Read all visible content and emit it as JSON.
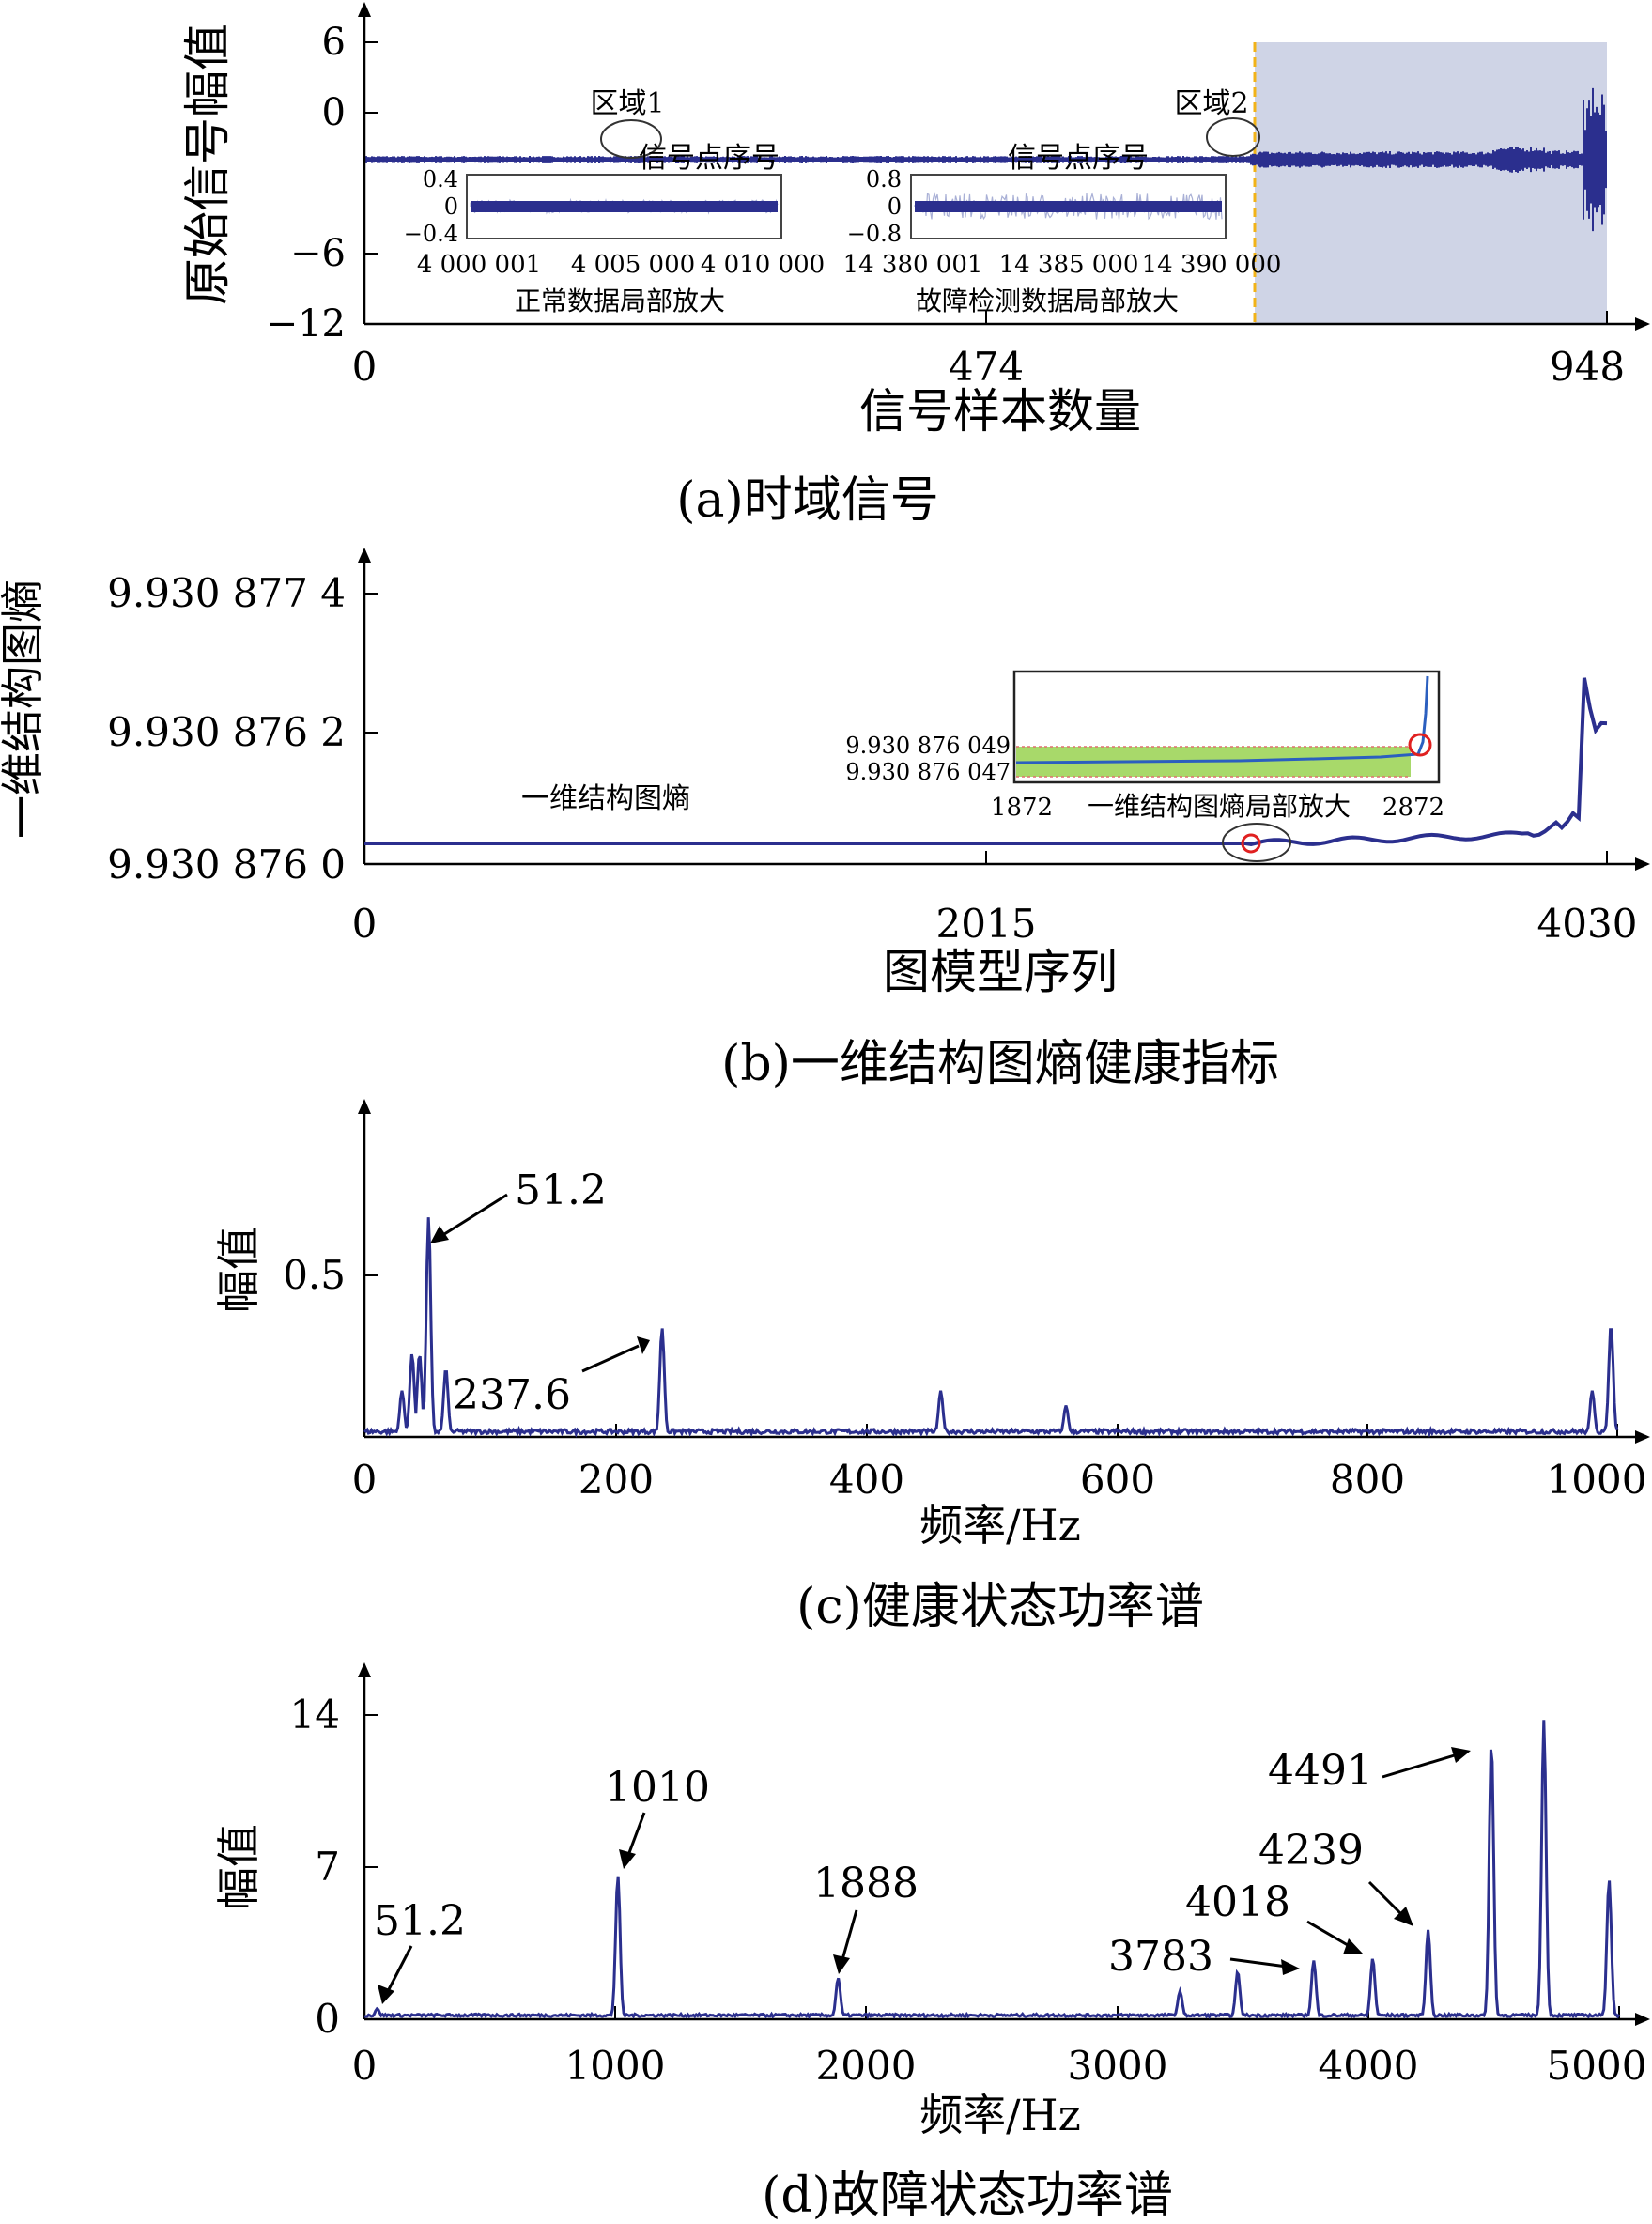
{
  "colors": {
    "line": "#2b2f8e",
    "shade": "#cfd4e6",
    "dashed": "#f2b319",
    "marker": "#e02020",
    "inset_fill": "#a8d96a",
    "axis": "#000000"
  },
  "chart_data": [
    {
      "id": "a",
      "type": "line",
      "caption": "(a)时域信号",
      "xlabel": "信号样本数量",
      "ylabel": "原始信号幅值",
      "xlim": [
        0,
        948
      ],
      "ylim": [
        -12,
        6
      ],
      "xticks": [
        "0",
        "474",
        "948"
      ],
      "yticks": [
        "6",
        "0",
        "−6",
        "−12"
      ],
      "series": [
        {
          "x": [
            0,
            100,
            200,
            300,
            400,
            500,
            600,
            630,
            680,
            740,
            800,
            840,
            880,
            900,
            920,
            940,
            948
          ],
          "y": [
            -1.5,
            -1.5,
            -1.5,
            -1.5,
            -1.5,
            -1.5,
            -1.5,
            -1.5,
            -1.5,
            -1.6,
            -1.4,
            -1.5,
            -1.5,
            -1.6,
            -1.4,
            -1.5,
            -1.5
          ]
        }
      ],
      "fault_start": 675,
      "annotations": [
        {
          "text": "区域1",
          "x": 195
        },
        {
          "text": "区域2",
          "x": 650
        }
      ],
      "insets": [
        {
          "title": "信号点序号",
          "caption": "正常数据局部放大",
          "yticks": [
            "0.4",
            "0",
            "−0.4"
          ],
          "xticks": [
            "4 000 001",
            "4 005 000",
            "4 010 000"
          ],
          "amplitude": 0.1
        },
        {
          "title": "信号点序号",
          "caption": "故障检测数据局部放大",
          "yticks": [
            "0.8",
            "0",
            "−0.8"
          ],
          "xticks": [
            "14 380 001",
            "14 385 000",
            "14 390 000"
          ],
          "amplitude": 0.2
        }
      ]
    },
    {
      "id": "b",
      "type": "line",
      "caption": "(b)一维结构图熵健康指标",
      "xlabel": "图模型序列",
      "ylabel": "一维结构图熵",
      "xlim": [
        0,
        4030
      ],
      "ylim": [
        9.930876,
        9.9308774
      ],
      "xticks": [
        "0",
        "2015",
        "4030"
      ],
      "yticks": [
        "9.930 877 4",
        "9.930 876 2",
        "9.930 876 0"
      ],
      "series_label": "一维结构图熵",
      "series": [
        {
          "x": [
            0,
            1000,
            2000,
            2872,
            3000,
            3300,
            3500,
            3700,
            3800,
            3850,
            3900,
            3950,
            4000,
            4030
          ],
          "y": [
            9.93087604,
            9.93087604,
            9.93087604,
            9.93087604,
            9.93087603,
            9.93087603,
            9.93087604,
            9.93087605,
            9.93087607,
            9.9308761,
            9.93087612,
            9.93087615,
            9.9308763,
            9.9308764
          ]
        }
      ],
      "marker_x": 2872,
      "inset": {
        "caption": "一维结构图熵局部放大",
        "x_start": "1872",
        "x_end": "2872",
        "yticks": [
          "9.930 876 049",
          "9.930 876 047"
        ]
      }
    },
    {
      "id": "c",
      "type": "line",
      "caption": "(c)健康状态功率谱",
      "xlabel": "频率/Hz",
      "ylabel": "幅值",
      "xlim": [
        0,
        1000
      ],
      "ylim": [
        0,
        0.6
      ],
      "xticks": [
        "0",
        "200",
        "400",
        "600",
        "800",
        "1000"
      ],
      "yticks": [
        "0.5"
      ],
      "peaks": [
        {
          "x": 30,
          "y": 0.12
        },
        {
          "x": 38,
          "y": 0.22
        },
        {
          "x": 44,
          "y": 0.22
        },
        {
          "x": 51.2,
          "y": 0.59
        },
        {
          "x": 65,
          "y": 0.18
        },
        {
          "x": 237.6,
          "y": 0.29
        },
        {
          "x": 460,
          "y": 0.12
        },
        {
          "x": 560,
          "y": 0.08
        },
        {
          "x": 980,
          "y": 0.12
        },
        {
          "x": 995,
          "y": 0.3
        }
      ],
      "annotations": [
        "51.2",
        "237.6"
      ]
    },
    {
      "id": "d",
      "type": "line",
      "caption": "(d)故障状态功率谱",
      "xlabel": "频率/Hz",
      "ylabel": "幅值",
      "xlim": [
        0,
        5000
      ],
      "ylim": [
        0,
        14
      ],
      "xticks": [
        "0",
        "1000",
        "2000",
        "3000",
        "4000",
        "5000"
      ],
      "yticks": [
        "14",
        "7",
        "0"
      ],
      "peaks": [
        {
          "x": 51.2,
          "y": 0.4
        },
        {
          "x": 1010,
          "y": 6.5
        },
        {
          "x": 1888,
          "y": 1.8
        },
        {
          "x": 3250,
          "y": 1.2
        },
        {
          "x": 3480,
          "y": 2.1
        },
        {
          "x": 3783,
          "y": 2.6
        },
        {
          "x": 4018,
          "y": 2.7
        },
        {
          "x": 4239,
          "y": 4.0
        },
        {
          "x": 4491,
          "y": 12.6
        },
        {
          "x": 4700,
          "y": 13.6
        },
        {
          "x": 4960,
          "y": 6.3
        }
      ],
      "annotations": [
        "51.2",
        "1010",
        "1888",
        "3783",
        "4018",
        "4239",
        "4491"
      ]
    }
  ]
}
